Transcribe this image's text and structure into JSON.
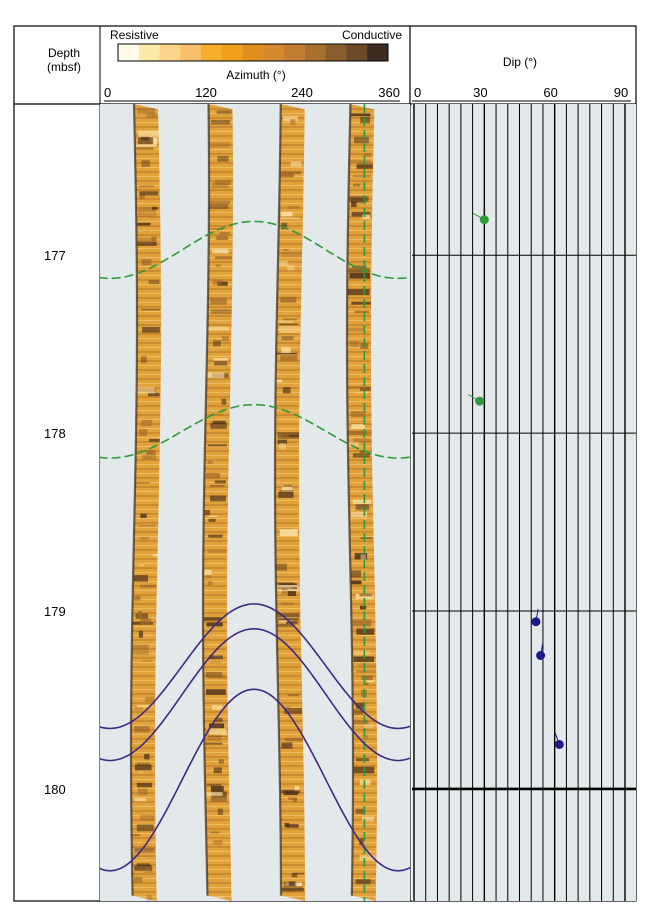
{
  "header": {
    "depth_label_line1": "Depth",
    "depth_label_line2": "(mbsf)",
    "scale_left_label": "Resistive",
    "scale_right_label": "Conductive",
    "azimuth_label": "Azimuth (°)",
    "dip_label": "Dip (°)"
  },
  "colors": {
    "frame": "#000000",
    "track_background": "#e3e9eb",
    "fmi_image_base": "#d99a2c",
    "fmi_image_light": "#fde7b0",
    "fmi_image_dark": "#4a2e1a",
    "green_sinusoid": "#2e9a3a",
    "purple_sinusoid": "#3d2a86",
    "green_tadpole": "#2e9a3a",
    "blue_tadpole": "#1a1a8c",
    "color_scale": [
      "#fffbea",
      "#fde9a8",
      "#fcd48a",
      "#f8c06a",
      "#f5ad2a",
      "#f09f1a",
      "#e08f1f",
      "#d5892e",
      "#c27d32",
      "#a8702e",
      "#8a5e2c",
      "#6a4a28",
      "#3c2c22"
    ]
  },
  "chart_data": [
    {
      "type": "image_log_track",
      "title": "",
      "xlabel": "Azimuth (°)",
      "xlim": [
        0,
        360
      ],
      "xticks": [
        0,
        120,
        240,
        360
      ],
      "ylabel": "Depth (mbsf)",
      "ylim": [
        176.15,
        180.63
      ],
      "depth_ticks": [
        177,
        178,
        179,
        180
      ],
      "pads_azimuth_center": [
        45,
        135,
        225,
        315
      ],
      "green_dashed_vertical_azimuth": 318,
      "sinusoids": [
        {
          "style": "dashed",
          "color": "green",
          "mid_depth": 176.97,
          "amplitude_m": 0.16,
          "peak_azimuth": 180
        },
        {
          "style": "dashed",
          "color": "green",
          "mid_depth": 177.99,
          "amplitude_m": 0.15,
          "peak_azimuth": 180
        },
        {
          "style": "solid",
          "color": "purple",
          "mid_depth": 179.31,
          "amplitude_m": 0.35,
          "peak_azimuth": 180
        },
        {
          "style": "solid",
          "color": "purple",
          "mid_depth": 179.47,
          "amplitude_m": 0.37,
          "peak_azimuth": 180
        },
        {
          "style": "solid",
          "color": "purple",
          "mid_depth": 179.95,
          "amplitude_m": 0.51,
          "peak_azimuth": 180
        }
      ]
    },
    {
      "type": "scatter",
      "title": "",
      "xlabel": "Dip (°)",
      "xlim": [
        0,
        90
      ],
      "xticks": [
        0,
        30,
        60,
        90
      ],
      "ylim": [
        176.15,
        180.63
      ],
      "depth_ticks": [
        177,
        178,
        179,
        180
      ],
      "points": [
        {
          "depth": 176.8,
          "dip": 30,
          "color": "green",
          "tail_azimuth": 300
        },
        {
          "depth": 177.82,
          "dip": 28,
          "color": "green",
          "tail_azimuth": 300
        },
        {
          "depth": 179.06,
          "dip": 52,
          "color": "blue",
          "tail_azimuth": 10
        },
        {
          "depth": 179.25,
          "dip": 54,
          "color": "blue",
          "tail_azimuth": 10
        },
        {
          "depth": 179.75,
          "dip": 62,
          "color": "blue",
          "tail_azimuth": 340
        }
      ]
    }
  ]
}
